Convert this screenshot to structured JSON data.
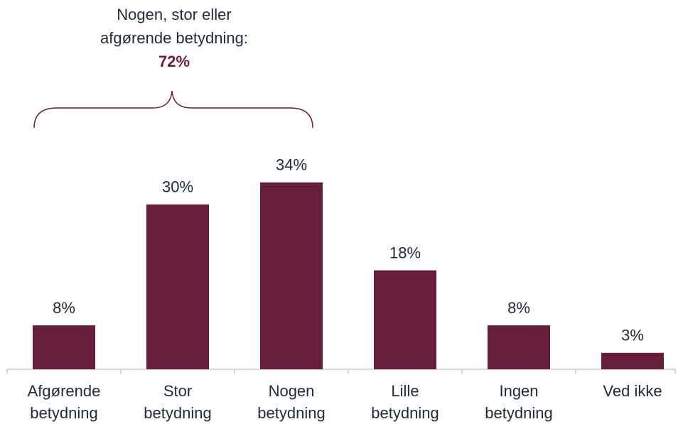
{
  "chart_data": {
    "type": "bar",
    "annotation": {
      "text": [
        "Nogen, stor eller",
        "afgørende betydning:"
      ],
      "value_label": "72%"
    },
    "categories": [
      "Afgørende\nbetydning",
      "Stor\nbetydning",
      "Nogen\nbetydning",
      "Lille\nbetydning",
      "Ingen\nbetydning",
      "Ved ikke"
    ],
    "values": [
      8,
      30,
      34,
      18,
      8,
      3
    ],
    "value_labels": [
      "8%",
      "30%",
      "34%",
      "18%",
      "8%",
      "3%"
    ],
    "color": "#651e3b"
  }
}
